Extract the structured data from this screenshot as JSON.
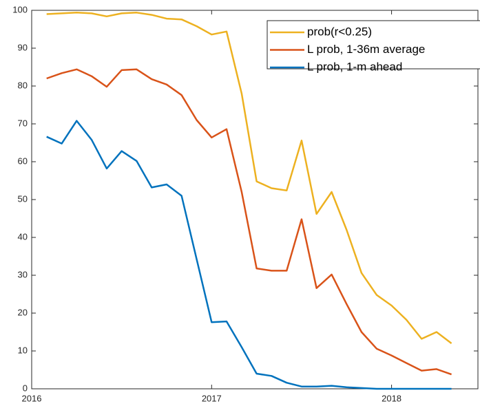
{
  "chart_data": {
    "type": "line",
    "x": [
      2016.083,
      2016.167,
      2016.25,
      2016.333,
      2016.417,
      2016.5,
      2016.583,
      2016.667,
      2016.75,
      2016.833,
      2016.917,
      2017.0,
      2017.083,
      2017.167,
      2017.25,
      2017.333,
      2017.417,
      2017.5,
      2017.583,
      2017.667,
      2017.75,
      2017.833,
      2017.917,
      2018.0,
      2018.083,
      2018.167,
      2018.25,
      2018.333
    ],
    "series": [
      {
        "name": "prob(r<0.25)",
        "color": "#EDB120",
        "values": [
          99,
          99.2,
          99.4,
          99.2,
          98.4,
          99.2,
          99.4,
          98.8,
          97.8,
          97.6,
          95.8,
          93.6,
          94.4,
          78,
          54.8,
          53,
          52.4,
          65.6,
          46.2,
          52,
          42,
          30.6,
          24.8,
          22,
          18.2,
          13.2,
          15,
          12
        ]
      },
      {
        "name": "L prob, 1-36m average",
        "color": "#D95319",
        "values": [
          82,
          83.4,
          84.4,
          82.6,
          79.8,
          84.2,
          84.4,
          81.8,
          80.4,
          77.6,
          71,
          66.4,
          68.6,
          52,
          31.8,
          31.2,
          31.2,
          44.8,
          26.6,
          30.2,
          22.4,
          15,
          10.6,
          8.8,
          6.8,
          4.8,
          5.2,
          3.8
        ]
      },
      {
        "name": "L prob, 1-m ahead",
        "color": "#0072BD",
        "values": [
          66.6,
          64.8,
          70.8,
          65.8,
          58.2,
          62.8,
          60.2,
          53.2,
          54,
          51,
          34.2,
          17.6,
          17.8,
          11,
          4,
          3.4,
          1.6,
          0.6,
          0.6,
          0.8,
          0.4,
          0.2,
          0,
          0,
          0,
          0,
          0,
          0
        ]
      }
    ],
    "xlim": [
      2016,
      2018.48
    ],
    "xticks": [
      2016,
      2017,
      2018
    ],
    "ylim": [
      0,
      100
    ],
    "yticks": [
      0,
      10,
      20,
      30,
      40,
      50,
      60,
      70,
      80,
      90,
      100
    ],
    "legend": "northeast"
  }
}
